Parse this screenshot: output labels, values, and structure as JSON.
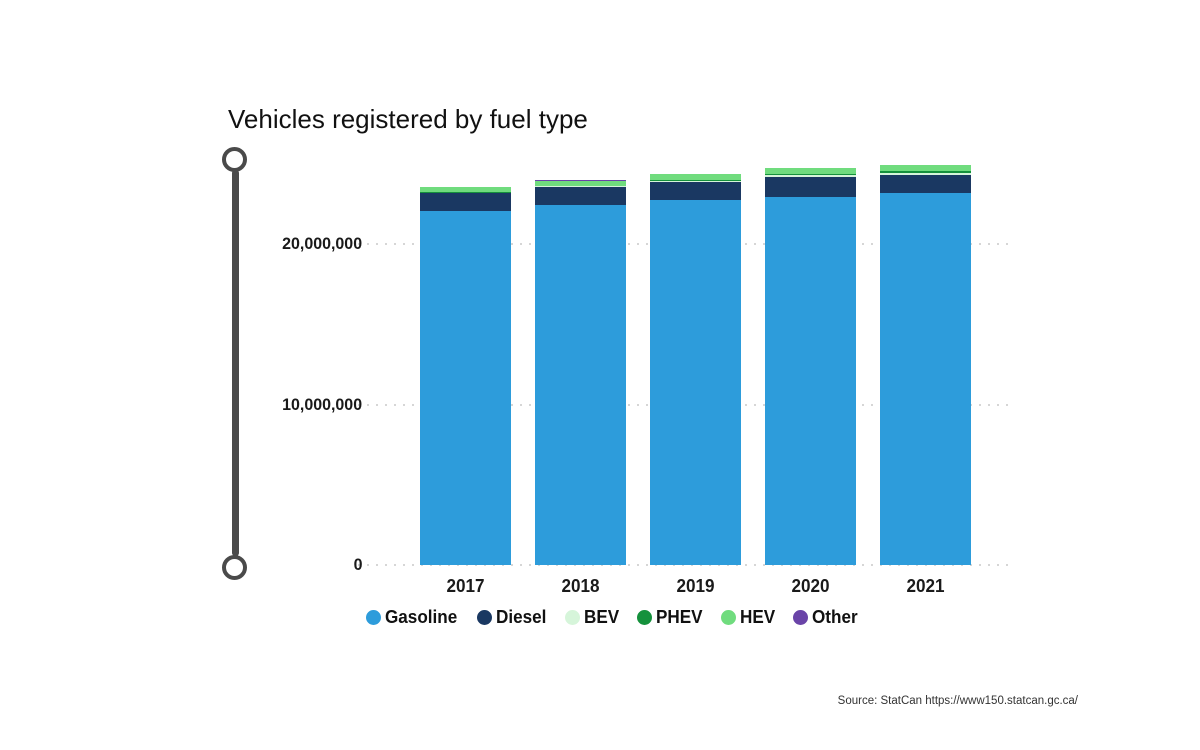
{
  "title": "Vehicles registered by fuel type",
  "source": "Source: StatCan https://www150.statcan.gc.ca/",
  "colors": {
    "slider": "#4a4a4a",
    "grid": "#d6d6d6",
    "text": "#1a1a1a",
    "background": "#ffffff"
  },
  "slider": {
    "orientation": "vertical",
    "top_handle": "range-start",
    "bottom_handle": "range-end"
  },
  "chart_data": {
    "type": "bar",
    "stacked": true,
    "title": "Vehicles registered by fuel type",
    "xlabel": "",
    "ylabel": "",
    "categories": [
      "2017",
      "2018",
      "2019",
      "2020",
      "2021"
    ],
    "series": [
      {
        "name": "Gasoline",
        "color": "#2D9CDB",
        "values": [
          22050000,
          22430000,
          22740000,
          22930000,
          23180000
        ]
      },
      {
        "name": "Diesel",
        "color": "#1A3862",
        "values": [
          1120000,
          1120000,
          1120000,
          1250000,
          1120000
        ]
      },
      {
        "name": "BEV",
        "color": "#D6F5DA",
        "values": [
          30000,
          50000,
          80000,
          100000,
          150000
        ]
      },
      {
        "name": "PHEV",
        "color": "#15913C",
        "values": [
          20000,
          40000,
          60000,
          80000,
          100000
        ]
      },
      {
        "name": "HEV",
        "color": "#70DC7E",
        "values": [
          310000,
          310000,
          370000,
          370000,
          370000
        ]
      },
      {
        "name": "Other",
        "color": "#6A44A8",
        "values": [
          10000,
          10000,
          10000,
          10000,
          20000
        ]
      }
    ],
    "totals": [
      23540000,
      23960000,
      24380000,
      24740000,
      24940000
    ],
    "ylim": [
      0,
      25000000
    ],
    "yticks": [
      {
        "value": 0,
        "label": "0"
      },
      {
        "value": 10000000,
        "label": "10,000,000"
      },
      {
        "value": 20000000,
        "label": "20,000,000"
      }
    ],
    "grid": "dotted-horizontal",
    "legend_position": "bottom",
    "values_unit": "vehicles"
  }
}
